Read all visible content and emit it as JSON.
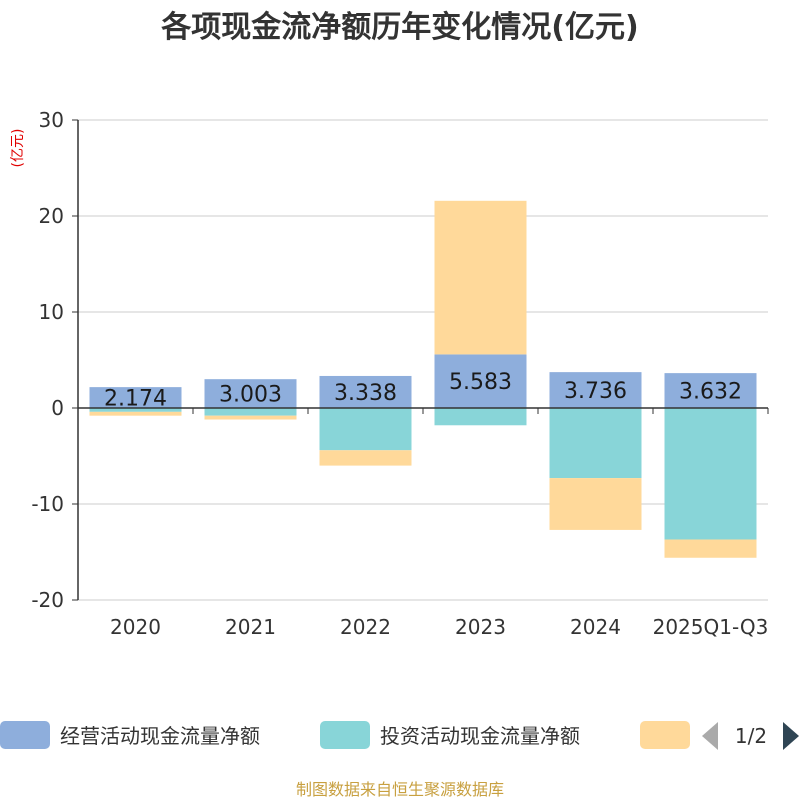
{
  "title": "各项现金流净额历年变化情况(亿元)",
  "footer": "制图数据来自恒生聚源数据库",
  "pager": "1/2",
  "chart_data": {
    "type": "bar",
    "stacked": true,
    "unit_label": "(亿元)",
    "categories": [
      "2020",
      "2021",
      "2022",
      "2023",
      "2024",
      "2025Q1-Q3"
    ],
    "ylim": [
      -20,
      30
    ],
    "yticks": [
      30,
      20,
      10,
      0,
      -10,
      -20
    ],
    "yticklabels": [
      "30",
      "20",
      "10",
      "0",
      "-10",
      "-20"
    ],
    "grid": true,
    "legend_position": "bottom",
    "series": [
      {
        "name": "经营活动现金流量净额",
        "color": "#8eaedc",
        "values": [
          2.174,
          3.003,
          3.338,
          5.583,
          3.736,
          3.632
        ],
        "labels": [
          "2.174",
          "3.003",
          "3.338",
          "5.583",
          "3.736",
          "3.632"
        ]
      },
      {
        "name": "投资活动现金流量净额",
        "color": "#88d5d8",
        "values": [
          -0.4,
          -0.8,
          -4.4,
          -1.8,
          -7.3,
          -13.7
        ]
      },
      {
        "name": "",
        "color": "#ffd99a",
        "values": [
          -0.4,
          -0.4,
          -1.6,
          16.0,
          -5.4,
          -1.9
        ]
      }
    ]
  }
}
